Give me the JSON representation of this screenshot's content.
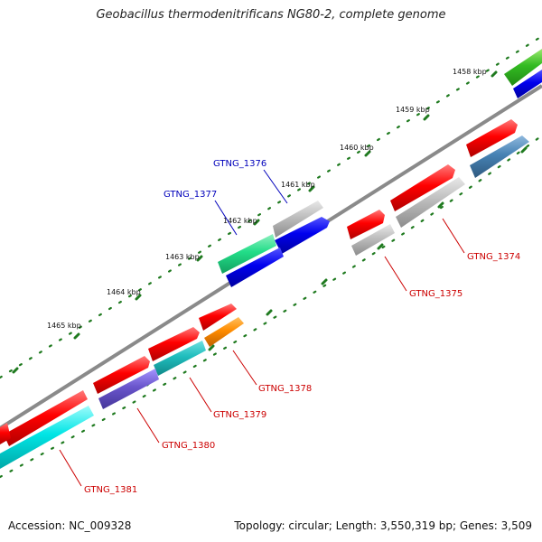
{
  "title": "Geobacillus thermodenitrificans NG80-2, complete genome",
  "footer": {
    "accession": "Accession: NC_009328",
    "topology": "Topology: circular; Length: 3,550,319 bp; Genes: 3,509"
  },
  "colors": {
    "backbone": "#8a8a8a",
    "ticks": "#1f7a1f",
    "label_red": "#cc0000",
    "label_blue": "#0000bb"
  },
  "ticks": [
    {
      "label": "1458 kbp"
    },
    {
      "label": "1459 kbp"
    },
    {
      "label": "1460 kbp"
    },
    {
      "label": "1461 kbp"
    },
    {
      "label": "1462 kbp"
    },
    {
      "label": "1463 kbp"
    },
    {
      "label": "1464 kbp"
    },
    {
      "label": "1465 kbp"
    }
  ],
  "genes": [
    {
      "name": "GTNG_1374",
      "strand": "+",
      "color": "#b3b3b3",
      "labeled": true
    },
    {
      "name": "GTNG_1375",
      "strand": "+",
      "color": "#b3b3b3",
      "labeled": true
    },
    {
      "name": "GTNG_1376",
      "strand": "-",
      "color": "#0000ee",
      "labeled": true
    },
    {
      "name": "GTNG_1377",
      "strand": "-",
      "color": "#22dd88",
      "labeled": true
    },
    {
      "name": "GTNG_1378",
      "strand": "+",
      "color": "#ff8c00",
      "labeled": true
    },
    {
      "name": "GTNG_1379",
      "strand": "+",
      "color": "#1fbdbd",
      "labeled": true
    },
    {
      "name": "GTNG_1380",
      "strand": "+",
      "color": "#6a55cc",
      "labeled": true
    },
    {
      "name": "GTNG_1381",
      "strand": "+",
      "color": "#00e5e5",
      "labeled": true
    }
  ]
}
